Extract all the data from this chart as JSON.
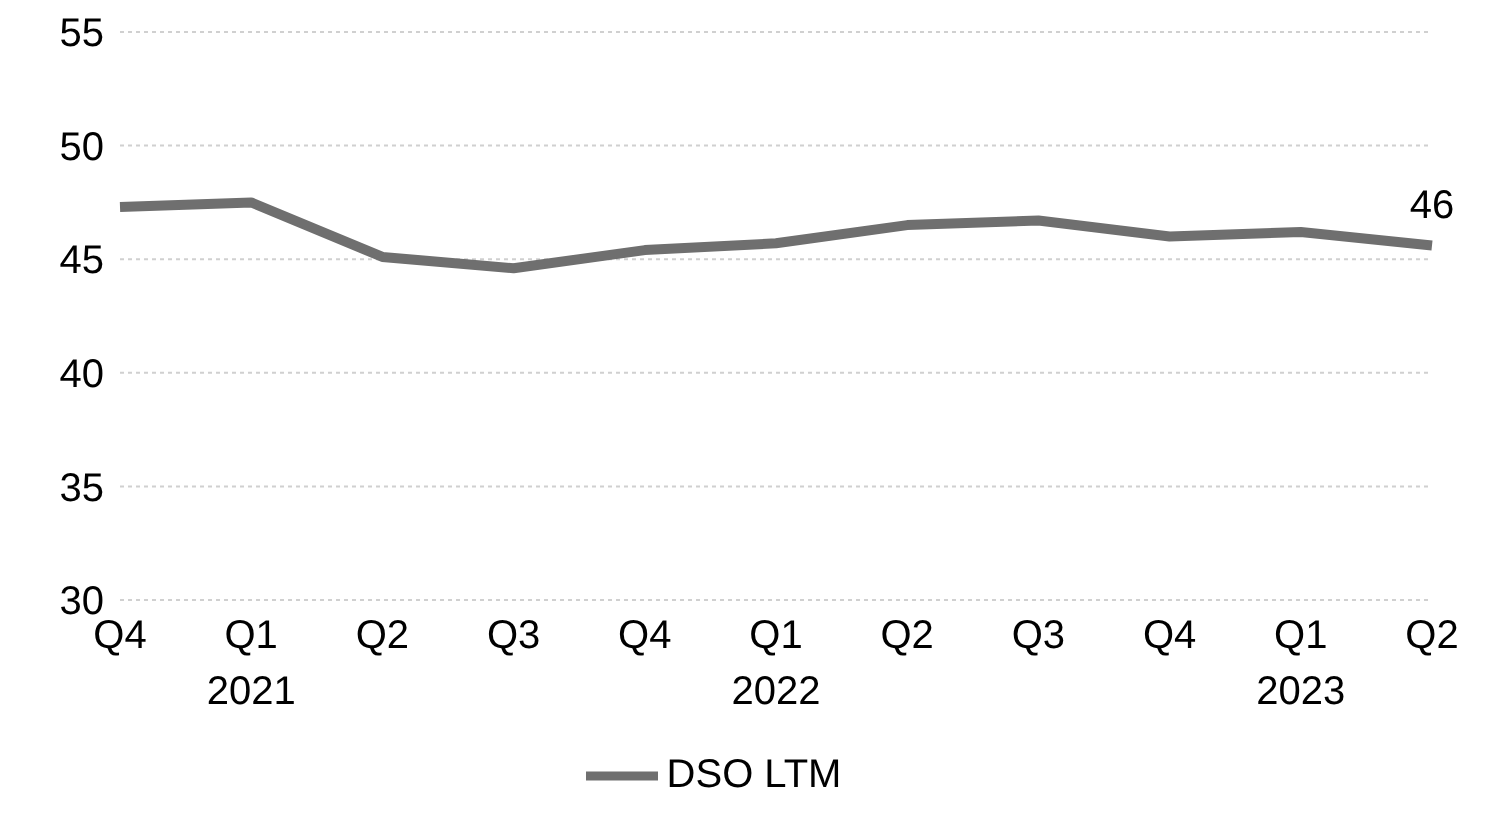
{
  "chart_data": {
    "type": "line",
    "categories": [
      "Q4",
      "Q1 2021",
      "Q2",
      "Q3",
      "Q4",
      "Q1 2022",
      "Q2",
      "Q3",
      "Q4",
      "Q1 2023",
      "Q2"
    ],
    "series": [
      {
        "name": "DSO LTM",
        "color": "#6f6f6f",
        "values": [
          47.3,
          47.5,
          45.1,
          44.6,
          45.4,
          45.7,
          46.5,
          46.7,
          46.0,
          46.2,
          45.6
        ],
        "value_labels": [
          null,
          null,
          null,
          null,
          null,
          null,
          null,
          null,
          null,
          null,
          "46"
        ]
      }
    ],
    "ylim": [
      30,
      55
    ],
    "yticks": [
      30,
      35,
      40,
      45,
      50,
      55
    ],
    "grid": "y",
    "legend": "bottom",
    "marker": "none",
    "line_style": "solid"
  }
}
